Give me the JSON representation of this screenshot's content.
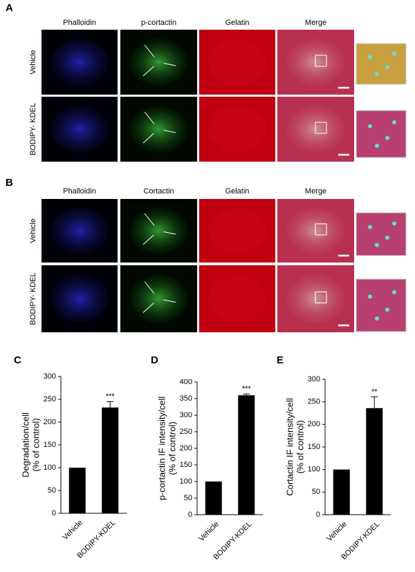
{
  "panels": [
    {
      "label": "A",
      "columns": [
        "Phalloidin",
        "p-cortactin",
        "Gelatin",
        "Merge"
      ],
      "rows": [
        "Vehicle",
        "BODIPY- KDEL"
      ]
    },
    {
      "label": "B",
      "columns": [
        "Phalloidin",
        "Cortactin",
        "Gelatin",
        "Merge"
      ],
      "rows": [
        "Vehicle",
        "BODIPY- KDEL"
      ]
    }
  ],
  "chart_data": [
    {
      "type": "bar",
      "label": "C",
      "ylabel": [
        "Degradation/cell",
        "(% of control)"
      ],
      "categories": [
        "Vehicle",
        "BODIPY-KDEL"
      ],
      "values": [
        100,
        232
      ],
      "errors": [
        null,
        13
      ],
      "annotations": [
        null,
        "***"
      ],
      "color": "#000000",
      "ylim": [
        0,
        300
      ],
      "yticks": [
        0,
        50,
        100,
        150,
        200,
        250,
        300
      ]
    },
    {
      "type": "bar",
      "label": "D",
      "ylabel": [
        "p-cortactin IF intensity/cell",
        "(% of control)"
      ],
      "categories": [
        "Vehicle",
        "BODIPY-KDEL"
      ],
      "values": [
        100,
        360
      ],
      "errors": [
        null,
        4
      ],
      "annotations": [
        null,
        "***"
      ],
      "color": "#000000",
      "ylim": [
        0,
        400
      ],
      "yticks": [
        0,
        50,
        100,
        150,
        200,
        250,
        300,
        350,
        400
      ]
    },
    {
      "type": "bar",
      "label": "E",
      "ylabel": [
        "Cortactin IF intensity/cell",
        "(% of control)"
      ],
      "categories": [
        "Vehicle",
        "BODIPY-KDEL"
      ],
      "values": [
        100,
        236
      ],
      "errors": [
        null,
        25
      ],
      "annotations": [
        null,
        "**"
      ],
      "color": "#000000",
      "ylim": [
        0,
        300
      ],
      "yticks": [
        0,
        50,
        100,
        150,
        200,
        250,
        300
      ]
    }
  ]
}
